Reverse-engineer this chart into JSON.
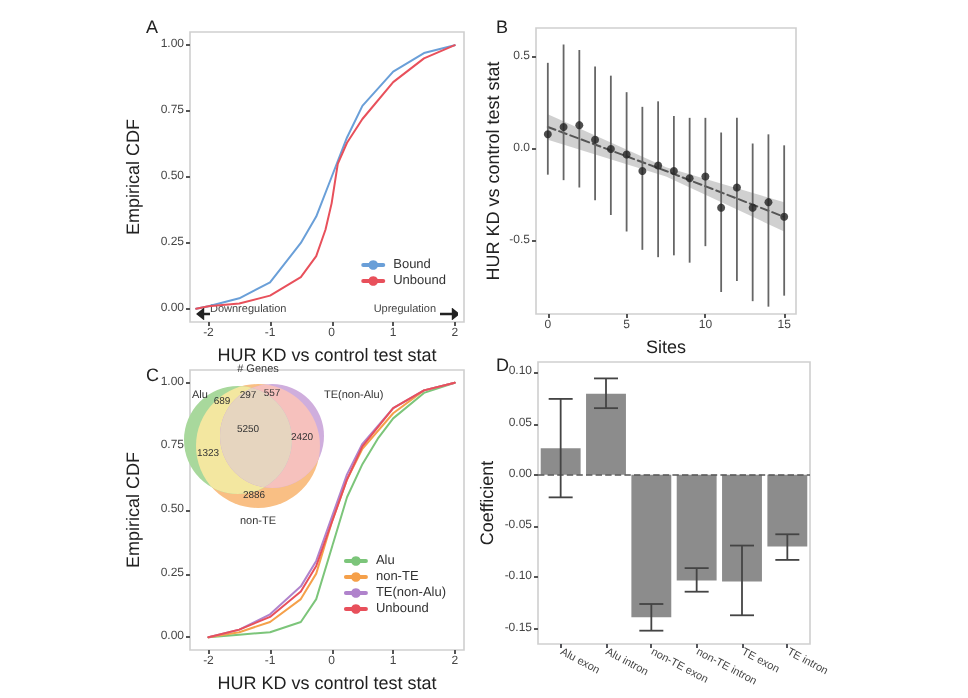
{
  "chart_data": [
    {
      "type": "line",
      "title": "A",
      "xlabel": "HUR KD vs control test stat",
      "ylabel": "Empirical CDF",
      "xlim": [
        -2.3,
        2.15
      ],
      "xticks": [
        -2,
        -1,
        0,
        1,
        2
      ],
      "ylim": [
        -0.05,
        1.05
      ],
      "yticks": [
        {
          "value": 0,
          "label": "0.00"
        },
        {
          "value": 0.25,
          "label": "0.25"
        },
        {
          "value": 0.5,
          "label": "0.50"
        },
        {
          "value": 0.75,
          "label": "0.75"
        },
        {
          "value": 1,
          "label": "1.00"
        }
      ],
      "grid": false,
      "legend": "bottom right",
      "marker": "none",
      "annotations": [
        "Downregulation",
        "Upregulation"
      ],
      "series": [
        {
          "name": "Bound",
          "color": "#6a9fd8",
          "x": [
            -2.2,
            -2,
            -1.5,
            -1,
            -0.5,
            -0.25,
            0,
            0.25,
            0.5,
            1,
            1.5,
            2
          ],
          "values": [
            0,
            0.01,
            0.04,
            0.1,
            0.25,
            0.35,
            0.5,
            0.65,
            0.77,
            0.9,
            0.97,
            1
          ]
        },
        {
          "name": "Unbound",
          "color": "#e8505b",
          "x": [
            -2.2,
            -2,
            -1.5,
            -1,
            -0.5,
            -0.25,
            -0.1,
            0,
            0.1,
            0.25,
            0.5,
            1,
            1.5,
            2
          ],
          "values": [
            0,
            0.01,
            0.02,
            0.05,
            0.12,
            0.2,
            0.3,
            0.4,
            0.55,
            0.63,
            0.72,
            0.86,
            0.95,
            1
          ]
        }
      ]
    },
    {
      "type": "scatter",
      "title": "B",
      "xlabel": "Sites",
      "ylabel": "HUR KD vs control test stat",
      "xlim": [
        -0.75,
        15.75
      ],
      "xticks": [
        0,
        5,
        10,
        15
      ],
      "ylim": [
        -0.9,
        0.66
      ],
      "yticks": [
        {
          "value": -0.5,
          "label": "-0.5"
        },
        {
          "value": 0,
          "label": "0.0"
        },
        {
          "value": 0.5,
          "label": "0.5"
        }
      ],
      "grid": false,
      "legend": false,
      "series": [
        {
          "type": "scatter",
          "color": "#222222",
          "x": [
            0,
            1,
            2,
            3,
            4,
            5,
            6,
            7,
            8,
            9,
            10,
            11,
            12,
            13,
            14,
            15
          ],
          "values": [
            0.08,
            0.12,
            0.13,
            0.05,
            0.0,
            -0.03,
            -0.12,
            -0.09,
            -0.12,
            -0.16,
            -0.15,
            -0.32,
            -0.21,
            -0.32,
            -0.29,
            -0.37
          ],
          "errors": [
            [
              -0.14,
              0.47
            ],
            [
              -0.17,
              0.57
            ],
            [
              -0.21,
              0.54
            ],
            [
              -0.28,
              0.45
            ],
            [
              -0.36,
              0.4
            ],
            [
              -0.45,
              0.31
            ],
            [
              -0.55,
              0.23
            ],
            [
              -0.59,
              0.26
            ],
            [
              -0.58,
              0.18
            ],
            [
              -0.62,
              0.17
            ],
            [
              -0.53,
              0.17
            ],
            [
              -0.78,
              0.09
            ],
            [
              -0.72,
              0.17
            ],
            [
              -0.83,
              0.03
            ],
            [
              -0.86,
              0.08
            ],
            [
              -0.8,
              0.02
            ]
          ]
        },
        {
          "type": "line",
          "color": "#555555",
          "line_style": "dashed",
          "x": [
            0,
            7.5,
            15
          ],
          "values": [
            0.12,
            -0.12,
            -0.37
          ],
          "lower": [
            0.05,
            -0.15,
            -0.45
          ],
          "upper": [
            0.19,
            -0.1,
            -0.29
          ]
        }
      ]
    },
    {
      "type": "line",
      "title": "C",
      "xlabel": "HUR KD vs control test stat",
      "ylabel": "Empirical CDF",
      "xlim": [
        -2.3,
        2.15
      ],
      "xticks": [
        -2,
        -1,
        0,
        1,
        2
      ],
      "ylim": [
        -0.05,
        1.05
      ],
      "yticks": [
        {
          "value": 0,
          "label": "0.00"
        },
        {
          "value": 0.25,
          "label": "0.25"
        },
        {
          "value": 0.5,
          "label": "0.50"
        },
        {
          "value": 0.75,
          "label": "0.75"
        },
        {
          "value": 1,
          "label": "1.00"
        }
      ],
      "grid": false,
      "legend": "bottom right",
      "marker": "none",
      "series": [
        {
          "name": "Alu",
          "color": "#7cc57a",
          "x": [
            -2,
            -1.5,
            -1,
            -0.5,
            -0.25,
            0,
            0.25,
            0.5,
            0.75,
            1,
            1.5,
            2
          ],
          "values": [
            0,
            0.01,
            0.02,
            0.06,
            0.15,
            0.35,
            0.55,
            0.68,
            0.78,
            0.86,
            0.96,
            1
          ]
        },
        {
          "name": "non-TE",
          "color": "#f5a04a",
          "x": [
            -2,
            -1.5,
            -1,
            -0.5,
            -0.25,
            0,
            0.25,
            0.5,
            1,
            1.5,
            2
          ],
          "values": [
            0,
            0.02,
            0.06,
            0.15,
            0.25,
            0.45,
            0.62,
            0.74,
            0.88,
            0.97,
            1
          ]
        },
        {
          "name": "TE(non-Alu)",
          "color": "#b083cc",
          "x": [
            -2,
            -1.5,
            -1,
            -0.5,
            -0.25,
            0,
            0.25,
            0.5,
            1,
            1.5,
            2
          ],
          "values": [
            0,
            0.03,
            0.09,
            0.2,
            0.3,
            0.47,
            0.64,
            0.76,
            0.9,
            0.97,
            1
          ]
        },
        {
          "name": "Unbound",
          "color": "#e8505b",
          "x": [
            -2,
            -1.5,
            -1,
            -0.5,
            -0.25,
            0,
            0.25,
            0.5,
            1,
            1.5,
            2
          ],
          "values": [
            0,
            0.03,
            0.08,
            0.18,
            0.28,
            0.45,
            0.62,
            0.75,
            0.9,
            0.97,
            1
          ]
        }
      ]
    },
    {
      "type": "other",
      "title": "# Genes",
      "annotations": [
        "Alu",
        "TE(non-Alu)",
        "non-TE"
      ],
      "categories": [
        null,
        null,
        null,
        null,
        null,
        null,
        null
      ],
      "colors": [
        "#a8d89c",
        "#c4b0cc",
        "#cfaedd",
        "#e6d5bf",
        "#f6c1bd",
        "#f3e7a0",
        "#f9bf84"
      ],
      "values": [
        689,
        297,
        557,
        5250,
        2420,
        1323,
        2886
      ],
      "data_labels": true
    },
    {
      "type": "bar",
      "title": "D",
      "ylabel": "Coefficient",
      "categories": [
        "Alu exon",
        "Alu intron",
        "non-TE exon",
        "non-TE intron",
        "TE exon",
        "TE intron"
      ],
      "values": [
        0.026,
        0.079,
        -0.139,
        -0.103,
        -0.104,
        -0.07
      ],
      "color": "#8c8c8c",
      "errors": [
        [
          -0.022,
          0.074
        ],
        [
          0.065,
          0.094
        ],
        [
          -0.152,
          -0.126
        ],
        [
          -0.114,
          -0.091
        ],
        [
          -0.137,
          -0.069
        ],
        [
          -0.083,
          -0.058
        ]
      ],
      "ylim": [
        -0.165,
        0.11
      ],
      "yticks": [
        {
          "value": -0.15,
          "label": "-0.15"
        },
        {
          "value": -0.1,
          "label": "-0.10"
        },
        {
          "value": -0.05,
          "label": "-0.05"
        },
        {
          "value": 0,
          "label": "0.00"
        },
        {
          "value": 0.05,
          "label": "0.05"
        },
        {
          "value": 0.1,
          "label": "0.10"
        }
      ],
      "grid": false,
      "legend": false,
      "ref_lines": [
        {
          "axis": "y",
          "value": 0,
          "color": "#555555",
          "line_style": "dashed"
        }
      ]
    }
  ]
}
